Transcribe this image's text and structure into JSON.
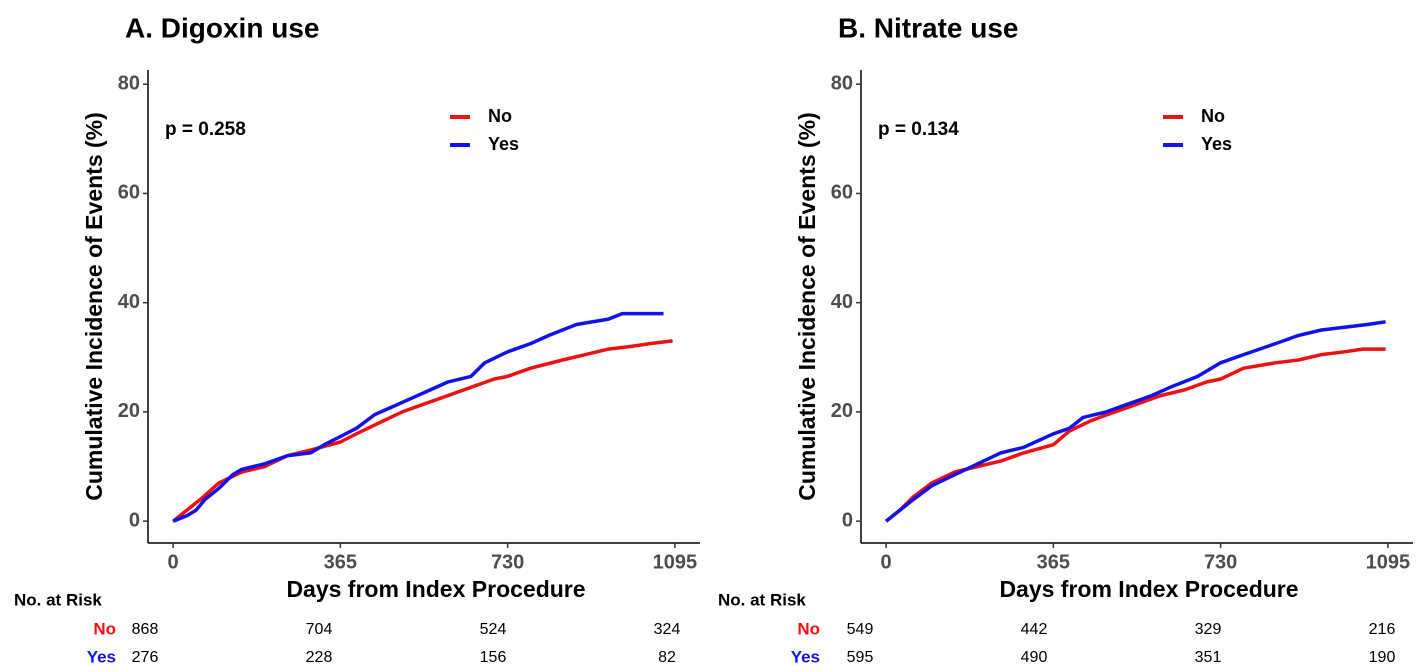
{
  "chart_data": [
    {
      "type": "line",
      "title": "A. Digoxin use",
      "annotation": "p = 0.258",
      "xlabel": "Days from Index Procedure",
      "ylabel": "Cumulative Incidence of Events (%)",
      "xlim": [
        -54.75,
        1149.75
      ],
      "ylim": [
        -4,
        82.6
      ],
      "xticks": [
        0,
        365,
        730,
        1095
      ],
      "yticks": [
        0,
        20,
        40,
        60,
        80
      ],
      "legend": "inside-top",
      "series": [
        {
          "name": "No",
          "color": "#ee1111",
          "x": [
            0,
            30,
            60,
            100,
            150,
            200,
            250,
            300,
            365,
            400,
            450,
            500,
            550,
            600,
            650,
            700,
            730,
            780,
            850,
            900,
            950,
            1000,
            1040,
            1090
          ],
          "values": [
            0,
            2,
            4,
            7,
            9,
            10,
            12,
            13,
            14.5,
            16,
            18,
            20,
            21.5,
            23,
            24.5,
            26,
            26.5,
            28,
            29.5,
            30.5,
            31.5,
            32,
            32.5,
            33
          ]
        },
        {
          "name": "Yes",
          "color": "#1111ee",
          "x": [
            0,
            30,
            50,
            70,
            100,
            130,
            150,
            200,
            250,
            300,
            330,
            365,
            400,
            440,
            480,
            520,
            560,
            600,
            650,
            680,
            730,
            780,
            820,
            880,
            950,
            980,
            1070
          ],
          "values": [
            0,
            1,
            2,
            4,
            6,
            8.5,
            9.5,
            10.5,
            12,
            12.5,
            14,
            15.5,
            17,
            19.5,
            21,
            22.5,
            24,
            25.5,
            26.5,
            29,
            31,
            32.5,
            34,
            36,
            37,
            38,
            38
          ]
        }
      ],
      "risk_table": {
        "title": "No. at Risk",
        "rows": [
          {
            "name": "No",
            "color": "#ee1111",
            "values": [
              868,
              704,
              524,
              324
            ]
          },
          {
            "name": "Yes",
            "color": "#1111ee",
            "values": [
              276,
              228,
              156,
              82
            ]
          }
        ]
      }
    },
    {
      "type": "line",
      "title": "B. Nitrate use",
      "annotation": "p = 0.134",
      "xlabel": "Days from Index Procedure",
      "ylabel": "Cumulative Incidence of Events (%)",
      "xlim": [
        -54.75,
        1149.75
      ],
      "ylim": [
        -4,
        82.6
      ],
      "xticks": [
        0,
        365,
        730,
        1095
      ],
      "yticks": [
        0,
        20,
        40,
        60,
        80
      ],
      "legend": "inside-top",
      "series": [
        {
          "name": "No",
          "color": "#ee1111",
          "x": [
            0,
            30,
            60,
            100,
            150,
            200,
            250,
            300,
            365,
            400,
            450,
            500,
            550,
            600,
            650,
            700,
            730,
            780,
            850,
            900,
            950,
            1000,
            1040,
            1090
          ],
          "values": [
            0,
            2,
            4.5,
            7,
            9,
            10,
            11,
            12.5,
            14,
            16.5,
            18.5,
            20,
            21.5,
            23,
            24,
            25.5,
            26,
            28,
            29,
            29.5,
            30.5,
            31,
            31.5,
            31.5
          ]
        },
        {
          "name": "Yes",
          "color": "#1111ee",
          "x": [
            0,
            30,
            60,
            100,
            150,
            200,
            250,
            300,
            365,
            400,
            430,
            480,
            530,
            580,
            620,
            680,
            730,
            780,
            850,
            900,
            950,
            1000,
            1050,
            1090
          ],
          "values": [
            0,
            2,
            4,
            6.5,
            8.5,
            10.5,
            12.5,
            13.5,
            16,
            17,
            19,
            20,
            21.5,
            23,
            24.5,
            26.5,
            29,
            30.5,
            32.5,
            34,
            35,
            35.5,
            36,
            36.5
          ]
        }
      ],
      "risk_table": {
        "title": "No. at Risk",
        "rows": [
          {
            "name": "No",
            "color": "#ee1111",
            "values": [
              549,
              442,
              329,
              216
            ]
          },
          {
            "name": "Yes",
            "color": "#1111ee",
            "values": [
              595,
              490,
              351,
              190
            ]
          }
        ]
      }
    }
  ]
}
